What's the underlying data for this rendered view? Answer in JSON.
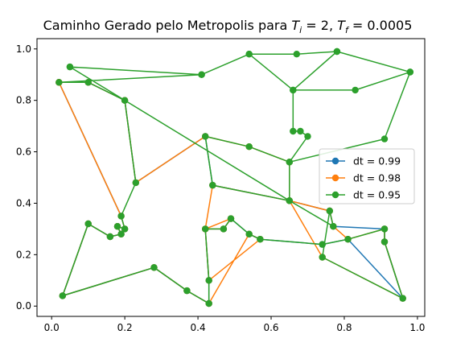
{
  "chart_data": {
    "type": "line",
    "title": {
      "prefix": "Caminho Gerado pelo Metropolis para ",
      "var_i": "T",
      "sub_i": "i",
      "eq_i": " = 2, ",
      "var_f": "T",
      "sub_f": "f",
      "eq_f": " = 0.0005"
    },
    "xlabel": "",
    "ylabel": "",
    "xlim": [
      -0.04,
      1.02
    ],
    "ylim": [
      -0.04,
      1.04
    ],
    "x_ticks": [
      0.0,
      0.2,
      0.4,
      0.6,
      0.8,
      1.0
    ],
    "x_tick_labels": [
      "0.0",
      "0.2",
      "0.4",
      "0.6",
      "0.8",
      "1.0"
    ],
    "y_ticks": [
      0.0,
      0.2,
      0.4,
      0.6,
      0.8,
      1.0
    ],
    "y_tick_labels": [
      "0.0",
      "0.2",
      "0.4",
      "0.6",
      "0.8",
      "1.0"
    ],
    "grid": false,
    "legend_position": "center-right",
    "series": [
      {
        "name": "dt = 0.99",
        "color": "#1f77b4",
        "points": [
          [
            0.02,
            0.87
          ],
          [
            0.1,
            0.87
          ],
          [
            0.2,
            0.8
          ],
          [
            0.23,
            0.48
          ],
          [
            0.42,
            0.66
          ],
          [
            0.44,
            0.47
          ],
          [
            0.65,
            0.41
          ],
          [
            0.76,
            0.37
          ],
          [
            0.77,
            0.31
          ],
          [
            0.91,
            0.3
          ],
          [
            0.91,
            0.25
          ],
          [
            0.96,
            0.03
          ],
          [
            0.81,
            0.26
          ],
          [
            0.74,
            0.24
          ],
          [
            0.57,
            0.26
          ],
          [
            0.54,
            0.28
          ],
          [
            0.49,
            0.34
          ],
          [
            0.47,
            0.3
          ],
          [
            0.42,
            0.3
          ],
          [
            0.43,
            0.1
          ],
          [
            0.43,
            0.01
          ],
          [
            0.37,
            0.06
          ],
          [
            0.28,
            0.15
          ],
          [
            0.03,
            0.04
          ],
          [
            0.1,
            0.32
          ],
          [
            0.16,
            0.27
          ],
          [
            0.19,
            0.28
          ],
          [
            0.18,
            0.31
          ],
          [
            0.2,
            0.3
          ],
          [
            0.19,
            0.35
          ],
          [
            0.02,
            0.87
          ]
        ]
      },
      {
        "name": "dt = 0.98",
        "color": "#ff7f0e",
        "points": [
          [
            0.02,
            0.87
          ],
          [
            0.1,
            0.87
          ],
          [
            0.2,
            0.8
          ],
          [
            0.23,
            0.48
          ],
          [
            0.42,
            0.66
          ],
          [
            0.54,
            0.62
          ],
          [
            0.65,
            0.56
          ],
          [
            0.65,
            0.41
          ],
          [
            0.74,
            0.19
          ],
          [
            0.96,
            0.03
          ],
          [
            0.91,
            0.25
          ],
          [
            0.91,
            0.3
          ],
          [
            0.81,
            0.26
          ],
          [
            0.77,
            0.31
          ],
          [
            0.76,
            0.37
          ],
          [
            0.65,
            0.41
          ],
          [
            0.44,
            0.47
          ],
          [
            0.42,
            0.3
          ],
          [
            0.49,
            0.34
          ],
          [
            0.47,
            0.3
          ],
          [
            0.42,
            0.3
          ],
          [
            0.43,
            0.1
          ],
          [
            0.57,
            0.26
          ],
          [
            0.54,
            0.28
          ],
          [
            0.43,
            0.01
          ],
          [
            0.37,
            0.06
          ],
          [
            0.28,
            0.15
          ],
          [
            0.03,
            0.04
          ],
          [
            0.1,
            0.32
          ],
          [
            0.16,
            0.27
          ],
          [
            0.19,
            0.28
          ],
          [
            0.18,
            0.31
          ],
          [
            0.2,
            0.3
          ],
          [
            0.19,
            0.35
          ],
          [
            0.02,
            0.87
          ]
        ]
      },
      {
        "name": "dt = 0.95",
        "color": "#2ca02c",
        "points": [
          [
            0.05,
            0.93
          ],
          [
            0.41,
            0.9
          ],
          [
            0.54,
            0.98
          ],
          [
            0.67,
            0.98
          ],
          [
            0.78,
            0.99
          ],
          [
            0.98,
            0.91
          ],
          [
            0.83,
            0.84
          ],
          [
            0.66,
            0.84
          ],
          [
            0.66,
            0.68
          ],
          [
            0.68,
            0.68
          ],
          [
            0.7,
            0.66
          ],
          [
            0.65,
            0.56
          ],
          [
            0.91,
            0.65
          ],
          [
            0.98,
            0.91
          ],
          [
            0.78,
            0.99
          ],
          [
            0.66,
            0.84
          ],
          [
            0.54,
            0.98
          ],
          [
            0.41,
            0.9
          ],
          [
            0.02,
            0.87
          ],
          [
            0.1,
            0.87
          ],
          [
            0.2,
            0.8
          ],
          [
            0.23,
            0.48
          ],
          [
            0.19,
            0.35
          ],
          [
            0.2,
            0.3
          ],
          [
            0.18,
            0.31
          ],
          [
            0.19,
            0.28
          ],
          [
            0.16,
            0.27
          ],
          [
            0.1,
            0.32
          ],
          [
            0.03,
            0.04
          ],
          [
            0.28,
            0.15
          ],
          [
            0.37,
            0.06
          ],
          [
            0.43,
            0.01
          ],
          [
            0.43,
            0.1
          ],
          [
            0.42,
            0.3
          ],
          [
            0.47,
            0.3
          ],
          [
            0.49,
            0.34
          ],
          [
            0.54,
            0.28
          ],
          [
            0.57,
            0.26
          ],
          [
            0.74,
            0.24
          ],
          [
            0.81,
            0.26
          ],
          [
            0.91,
            0.3
          ],
          [
            0.91,
            0.25
          ],
          [
            0.96,
            0.03
          ],
          [
            0.74,
            0.19
          ],
          [
            0.76,
            0.37
          ],
          [
            0.77,
            0.31
          ],
          [
            0.65,
            0.41
          ],
          [
            0.65,
            0.56
          ],
          [
            0.54,
            0.62
          ],
          [
            0.42,
            0.66
          ],
          [
            0.44,
            0.47
          ],
          [
            0.65,
            0.41
          ],
          [
            0.05,
            0.93
          ]
        ]
      }
    ]
  }
}
